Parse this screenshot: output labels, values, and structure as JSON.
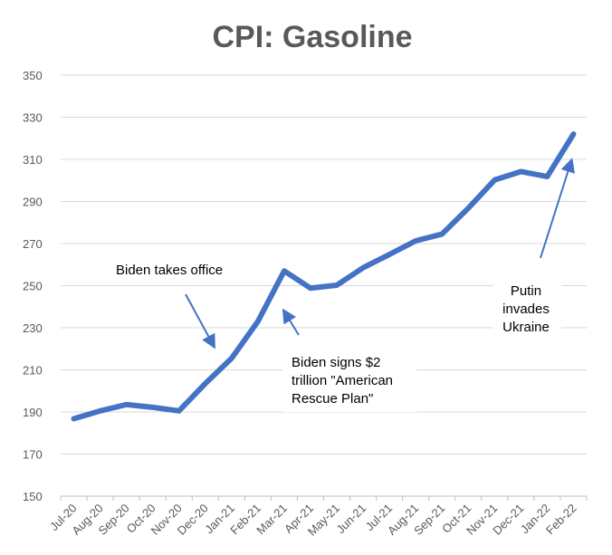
{
  "chart_data": {
    "type": "line",
    "title": "CPI: Gasoline",
    "xlabel": "",
    "ylabel": "",
    "ylim": [
      150,
      350
    ],
    "yticks": [
      150,
      170,
      190,
      210,
      230,
      250,
      270,
      290,
      310,
      330,
      350
    ],
    "grid": true,
    "legend": "none",
    "color": "#4472C4",
    "categories": [
      "Jul-20",
      "Aug-20",
      "Sep-20",
      "Oct-20",
      "Nov-20",
      "Dec-20",
      "Jan-21",
      "Feb-21",
      "Mar-21",
      "Apr-21",
      "May-21",
      "Jun-21",
      "Jul-21",
      "Aug-21",
      "Sep-21",
      "Oct-21",
      "Nov-21",
      "Dec-21",
      "Jan-22",
      "Feb-22"
    ],
    "series": [
      {
        "name": "CPI: Gasoline",
        "values": [
          186.8,
          190.5,
          193.5,
          192.2,
          190.5,
          203.5,
          215.5,
          233,
          257,
          248.8,
          250.2,
          258.5,
          264.8,
          271.3,
          274.5,
          286.8,
          300.2,
          304.2,
          301.8,
          322
        ]
      }
    ],
    "annotations": [
      {
        "lines": [
          "Biden takes office"
        ],
        "points_to": "Dec-20"
      },
      {
        "lines": [
          "Biden signs $2",
          "trillion \"American",
          "Rescue Plan\""
        ],
        "points_to": "Mar-21"
      },
      {
        "lines": [
          "Putin",
          "invades",
          "Ukraine"
        ],
        "points_to": "Feb-22"
      }
    ]
  }
}
